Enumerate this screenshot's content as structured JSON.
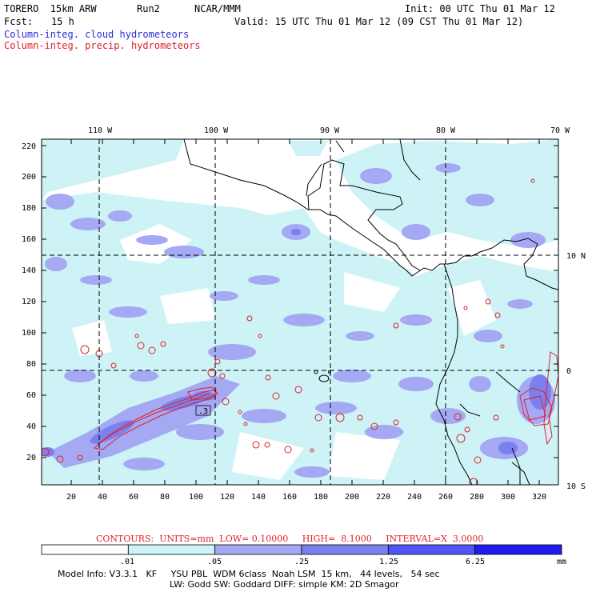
{
  "header": {
    "model": "TORERO  15km ARW",
    "run": "Run2",
    "org": "NCAR/MMM",
    "init": "Init: 00 UTC Thu 01 Mar 12",
    "fcst_label": "Fcst:",
    "fcst_value": "15 h",
    "valid": "Valid: 15 UTC Thu 01 Mar 12 (09 CST Thu 01 Mar 12)",
    "field_cloud": "Column-integ. cloud hydrometeors",
    "field_precip": "Column-integ. precip. hydrometeors"
  },
  "map": {
    "lon_labels": [
      "110 W",
      "100 W",
      "90 W",
      "80 W",
      "70 W"
    ],
    "lat_labels": [
      "10 N",
      "0",
      "10 S"
    ],
    "y_ticks": [
      "220",
      "200",
      "180",
      "160",
      "140",
      "120",
      "100",
      "80",
      "60",
      "40",
      "20"
    ],
    "x_ticks": [
      "20",
      "40",
      "60",
      "80",
      "100",
      "120",
      "140",
      "160",
      "180",
      "200",
      "220",
      "240",
      "260",
      "280",
      "300",
      "320"
    ],
    "inset_label": ".3"
  },
  "contours": {
    "text": "CONTOURS:  UNITS=mm  LOW= 0.10000     HIGH=  8.1000     INTERVAL=X  3.0000"
  },
  "colorbar": {
    "labels": [
      ".01",
      ".05",
      ".25",
      "1.25",
      "6.25"
    ],
    "unit": "mm",
    "colors": [
      "#ffffff",
      "#cdf3f7",
      "#a5a8f3",
      "#7b80ef",
      "#4d57f5",
      "#1e1ef0"
    ]
  },
  "footer": {
    "line1": "Model Info: V3.3.1   KF     YSU PBL  WDM 6class  Noah LSM  15 km,   44 levels,   54 sec",
    "line2": "LW: Godd SW: Goddard DIFF: simple KM: 2D Smagor"
  }
}
